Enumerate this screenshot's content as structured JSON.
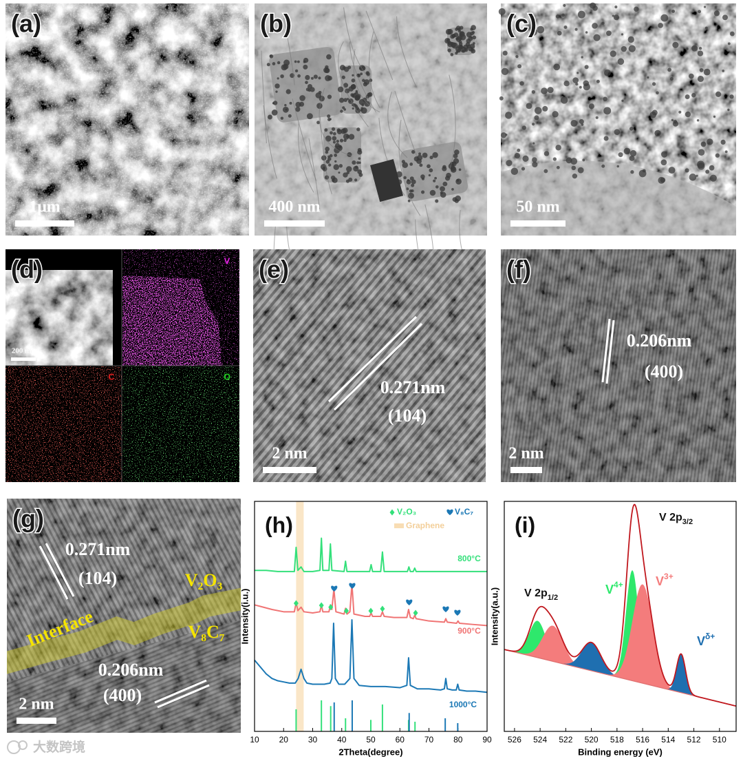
{
  "images": {
    "a": {
      "label": "(a)",
      "scale_bar": "1μm"
    },
    "b": {
      "label": "(b)",
      "scale_bar": "400 nm"
    },
    "c": {
      "label": "(c)",
      "scale_bar": "50 nm"
    },
    "d": {
      "label": "(d)",
      "scale_bar": "200 nm",
      "maps": [
        "V",
        "C",
        "O"
      ]
    },
    "e": {
      "label": "(e)",
      "scale_bar": "2 nm",
      "annotations": [
        "0.271nm",
        "(104)"
      ]
    },
    "f": {
      "label": "(f)",
      "scale_bar": "2 nm",
      "annotations": [
        "0.206nm",
        "(400)"
      ]
    },
    "g": {
      "label": "(g)",
      "scale_bar": "2 nm",
      "annotations": [
        "0.271nm",
        "(104)",
        "V₂O₃",
        "Interface",
        "V₈C₇",
        "0.206nm",
        "(400)"
      ]
    }
  },
  "panel_h": {
    "label": "(h)",
    "chart_data": {
      "type": "line",
      "xlabel": "2Theta(degree)",
      "ylabel": "Intensity(i.u.)",
      "xlim": [
        10,
        90
      ],
      "xticks": [
        10,
        20,
        30,
        40,
        50,
        60,
        70,
        80,
        90
      ],
      "ylim": [
        0,
        100
      ],
      "series": [
        {
          "name": "800°C",
          "color": "#33e07a",
          "x": [
            10,
            14,
            18,
            22,
            23.7,
            24.3,
            24.9,
            26,
            27,
            30,
            32.5,
            33,
            33.5,
            35.6,
            36.1,
            36.6,
            40.8,
            41.3,
            41.8,
            45,
            49.6,
            50.1,
            50.6,
            53.4,
            54,
            54.6,
            58,
            62.6,
            63.1,
            63.6,
            64.6,
            65.1,
            65.6,
            70,
            80,
            90
          ],
          "values": [
            70,
            70,
            69.5,
            69.5,
            69.5,
            80,
            70,
            71.5,
            69.5,
            69.5,
            70,
            84,
            70,
            70,
            81.5,
            70,
            69.5,
            74,
            69.5,
            69.5,
            69.5,
            72.5,
            69.5,
            69.5,
            78,
            69.5,
            69.5,
            69.5,
            71.5,
            69.5,
            69.5,
            71,
            69.5,
            69.5,
            69.5,
            69.5
          ]
        },
        {
          "name": "900°C",
          "color": "#f07474",
          "x": [
            10,
            13,
            16,
            20,
            23.7,
            24.3,
            24.9,
            26,
            27,
            30,
            32.5,
            33,
            33.5,
            35.6,
            36.1,
            36.6,
            37.3,
            38,
            40.8,
            41.3,
            41.8,
            42.8,
            43.5,
            44.2,
            48,
            49.6,
            50.1,
            50.6,
            53.4,
            54,
            54.6,
            58,
            62.4,
            63,
            63.6,
            64.6,
            65.1,
            65.6,
            70,
            75.3,
            75.8,
            76.3,
            79.5,
            80,
            80.5,
            85,
            90
          ],
          "values": [
            55,
            54,
            53,
            52,
            52,
            56,
            52.5,
            54,
            52,
            51.5,
            52,
            55,
            52,
            52,
            55,
            53,
            62,
            52,
            51,
            53.5,
            51,
            52,
            64,
            51,
            50,
            50,
            51.5,
            50,
            50,
            52,
            50,
            49.5,
            49.5,
            53,
            49.5,
            49,
            50.5,
            49,
            48,
            47.5,
            49,
            47.5,
            47,
            48,
            47,
            46.5,
            46
          ]
        },
        {
          "name": "1000°C",
          "color": "#1b78b5",
          "x": [
            10,
            12,
            14,
            16,
            18,
            20,
            22,
            24,
            25,
            26,
            27,
            28,
            30,
            32,
            34,
            36,
            36.6,
            37.2,
            37.8,
            39,
            41,
            42.8,
            43.5,
            44.2,
            46,
            50,
            55,
            60,
            62.4,
            63,
            63.6,
            66,
            70,
            74,
            75.3,
            75.8,
            76.3,
            78,
            79.4,
            79.9,
            80.4,
            83,
            86,
            90
          ],
          "values": [
            31,
            28,
            25,
            23,
            22,
            21.5,
            21,
            21,
            23,
            27,
            23,
            21,
            20.5,
            20.5,
            20.5,
            21,
            23,
            47,
            23,
            20.5,
            20.5,
            23,
            48.5,
            23,
            20,
            19.5,
            19.5,
            19,
            20,
            32,
            20,
            18.5,
            18.5,
            18,
            18.5,
            23,
            18.5,
            18,
            18,
            20.5,
            18,
            17.5,
            17.5,
            17
          ]
        }
      ],
      "references": [
        {
          "name": "V₂O₃",
          "color": "#33e07a",
          "marker": "diamond",
          "x": [
            24.3,
            33,
            36.2,
            41.3,
            50,
            54,
            63,
            65.2
          ],
          "values": [
            9.6,
            13.5,
            11,
            5.7,
            5,
            11.7,
            5,
            4.2
          ],
          "marker_x": [
            24.3,
            33,
            36.2,
            41.6,
            50,
            54,
            65.4
          ],
          "marker_values": [
            55.7,
            54.8,
            54,
            52.4,
            52.4,
            53.3,
            51.5
          ]
        },
        {
          "name": "V₈C₇",
          "color": "#1b78b5",
          "marker": "heart",
          "x": [
            37.4,
            43.6,
            63.2,
            75.6,
            79.9
          ],
          "values": [
            12.6,
            13.5,
            8,
            5.7,
            3.6
          ],
          "marker_x": [
            37.4,
            43.6,
            63.2,
            75.8,
            79.8
          ],
          "marker_values": [
            62,
            63.2,
            56,
            53,
            51.5
          ]
        }
      ],
      "band": {
        "name": "Graphene",
        "color": "#f8ddb4",
        "x": [
          24.3,
          26.9
        ]
      }
    }
  },
  "panel_i": {
    "label": "(i)",
    "chart_data": {
      "type": "xps",
      "xlabel": "Binding energy (eV)",
      "ylabel": "Intensity(a.u.)",
      "xlim": [
        526.8,
        508.7
      ],
      "xticks": [
        526,
        524,
        522,
        520,
        518,
        516,
        514,
        512,
        510
      ],
      "ylim": [
        0,
        100
      ],
      "background": {
        "color": "#e07070",
        "x": [
          526.8,
          508.7
        ],
        "values": [
          35.6,
          11
        ]
      },
      "envelope_color": "#c0171d",
      "components": [
        {
          "color": "#2ee86c",
          "center": 524.2,
          "height": 16,
          "sigma": 0.65
        },
        {
          "color": "#f47c7c",
          "center": 523.0,
          "height": 15.5,
          "sigma": 0.8
        },
        {
          "color": "#1f6fb0",
          "center": 520.0,
          "height": 12.3,
          "sigma": 0.75
        },
        {
          "color": "#2ee86c",
          "center": 516.8,
          "height": 48,
          "sigma": 0.5
        },
        {
          "color": "#f47c7c",
          "center": 516.0,
          "height": 43,
          "sigma": 0.8
        },
        {
          "color": "#1f6fb0",
          "center": 513.0,
          "height": 16.8,
          "sigma": 0.35
        }
      ],
      "annotations": [
        {
          "text": "V 2p",
          "sub": "3/2",
          "color": "#111111"
        },
        {
          "text": "V 2p",
          "sub": "1/2",
          "color": "#111111"
        },
        {
          "text": "V",
          "sup": "4+",
          "color": "#2ee86c"
        },
        {
          "text": "V",
          "sup": "3+",
          "color": "#f47c7c"
        },
        {
          "text": "V",
          "sup": "δ+",
          "color": "#1f6fb0"
        }
      ]
    }
  },
  "watermark": "大数跨境"
}
